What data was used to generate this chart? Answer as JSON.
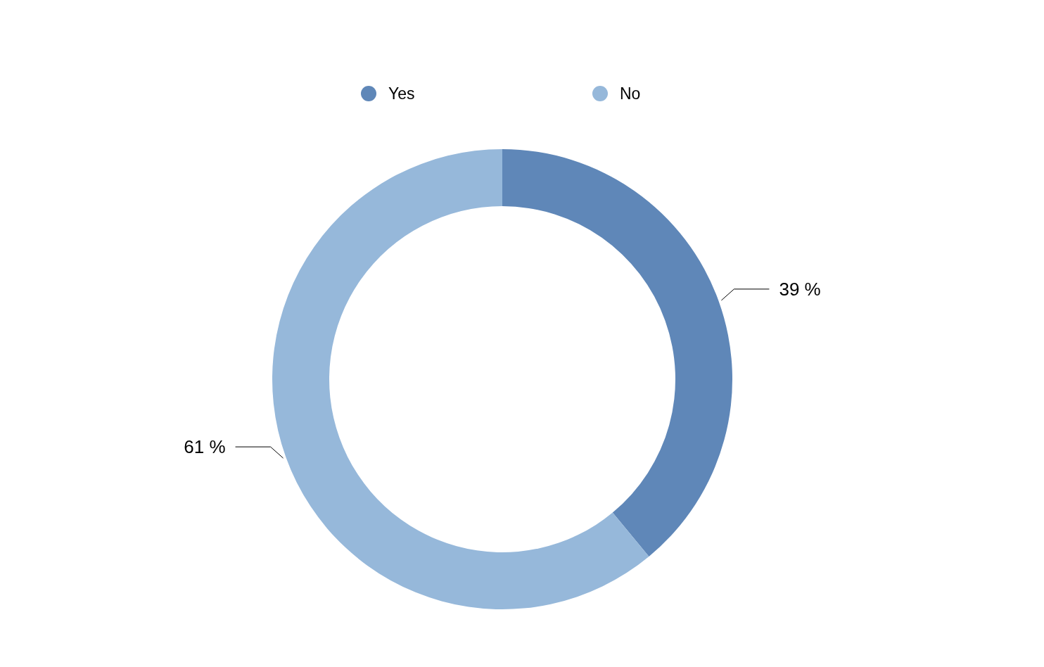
{
  "chart_data": {
    "type": "donut",
    "categories": [
      "Yes",
      "No"
    ],
    "values": [
      39,
      61
    ],
    "colors": [
      "#5f87b8",
      "#96b8da"
    ],
    "value_labels": [
      "39 %",
      "61 %"
    ],
    "legend": "top"
  }
}
